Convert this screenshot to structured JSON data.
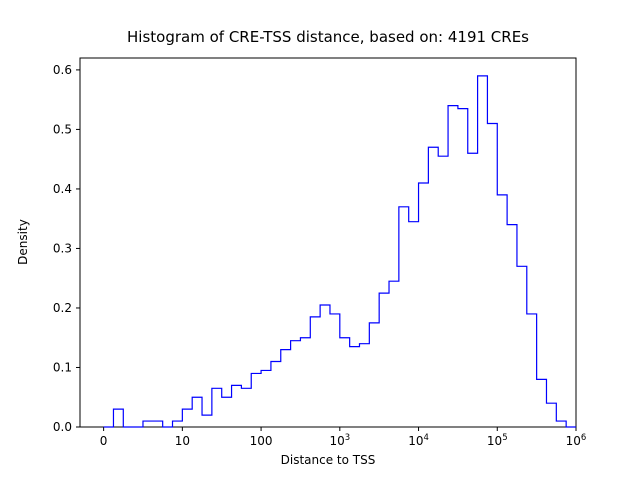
{
  "chart_data": {
    "type": "bar",
    "subtype": "step-histogram",
    "title": "Histogram of CRE-TSS distance, based on: 4191 CREs",
    "xlabel": "Distance to TSS",
    "ylabel": "Density",
    "n_cres": 4191,
    "line_color": "#0000ff",
    "axis_color": "#000000",
    "background_color": "#ffffff",
    "grid": false,
    "legend": false,
    "x_scale": "log10 of distance (decade units; tick u=0 shown as 0, u=1 as 10, ... u=6 as 1000000)",
    "ylim": [
      0,
      0.62
    ],
    "xlim_u": [
      -0.3,
      6.0
    ],
    "y_ticks": [
      0.0,
      0.1,
      0.2,
      0.3,
      0.4,
      0.5,
      0.6
    ],
    "x_ticks": [
      {
        "u": 0,
        "text": "0"
      },
      {
        "u": 1,
        "text": "10"
      },
      {
        "u": 2,
        "text": "100"
      },
      {
        "u": 3,
        "text": "10",
        "sup": "3"
      },
      {
        "u": 4,
        "text": "10",
        "sup": "4"
      },
      {
        "u": 5,
        "text": "10",
        "sup": "5"
      },
      {
        "u": 6,
        "text": "10",
        "sup": "6"
      }
    ],
    "bins": {
      "start_u": 0,
      "width_u": 0.125,
      "bins_per_decade": 8,
      "densities": [
        0.0,
        0.03,
        0.0,
        0.0,
        0.01,
        0.01,
        0.0,
        0.01,
        0.03,
        0.05,
        0.02,
        0.065,
        0.05,
        0.07,
        0.065,
        0.09,
        0.095,
        0.11,
        0.13,
        0.145,
        0.15,
        0.185,
        0.205,
        0.19,
        0.15,
        0.135,
        0.14,
        0.175,
        0.225,
        0.245,
        0.37,
        0.345,
        0.41,
        0.47,
        0.455,
        0.54,
        0.535,
        0.46,
        0.59,
        0.51,
        0.39,
        0.34,
        0.27,
        0.19,
        0.08,
        0.04,
        0.01,
        0.0
      ]
    }
  }
}
